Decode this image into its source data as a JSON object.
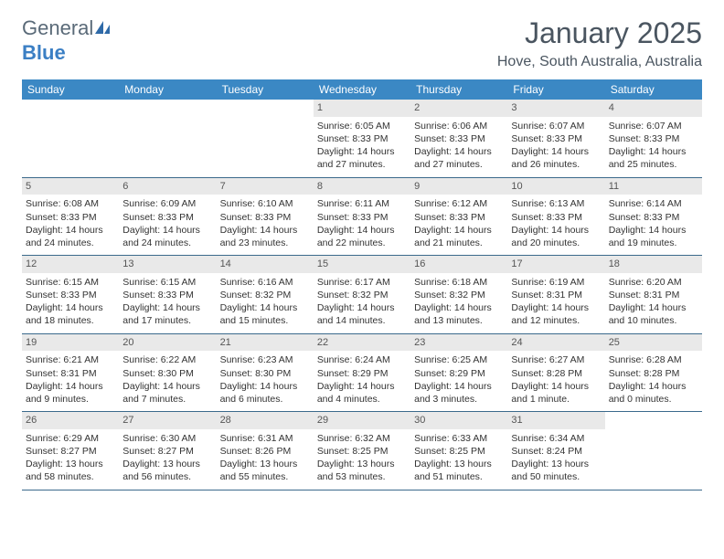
{
  "brand": {
    "general": "General",
    "blue": "Blue"
  },
  "header": {
    "title": "January 2025",
    "location": "Hove, South Australia, Australia"
  },
  "style": {
    "header_bg": "#3b88c4",
    "header_text": "#ffffff",
    "daynum_bg": "#e9e9e9",
    "week_border": "#3b6a8c",
    "title_color": "#4a5560"
  },
  "day_names": [
    "Sunday",
    "Monday",
    "Tuesday",
    "Wednesday",
    "Thursday",
    "Friday",
    "Saturday"
  ],
  "weeks": [
    [
      {
        "empty": true
      },
      {
        "empty": true
      },
      {
        "empty": true
      },
      {
        "day": "1",
        "sunrise": "Sunrise: 6:05 AM",
        "sunset": "Sunset: 8:33 PM",
        "daylight1": "Daylight: 14 hours",
        "daylight2": "and 27 minutes."
      },
      {
        "day": "2",
        "sunrise": "Sunrise: 6:06 AM",
        "sunset": "Sunset: 8:33 PM",
        "daylight1": "Daylight: 14 hours",
        "daylight2": "and 27 minutes."
      },
      {
        "day": "3",
        "sunrise": "Sunrise: 6:07 AM",
        "sunset": "Sunset: 8:33 PM",
        "daylight1": "Daylight: 14 hours",
        "daylight2": "and 26 minutes."
      },
      {
        "day": "4",
        "sunrise": "Sunrise: 6:07 AM",
        "sunset": "Sunset: 8:33 PM",
        "daylight1": "Daylight: 14 hours",
        "daylight2": "and 25 minutes."
      }
    ],
    [
      {
        "day": "5",
        "sunrise": "Sunrise: 6:08 AM",
        "sunset": "Sunset: 8:33 PM",
        "daylight1": "Daylight: 14 hours",
        "daylight2": "and 24 minutes."
      },
      {
        "day": "6",
        "sunrise": "Sunrise: 6:09 AM",
        "sunset": "Sunset: 8:33 PM",
        "daylight1": "Daylight: 14 hours",
        "daylight2": "and 24 minutes."
      },
      {
        "day": "7",
        "sunrise": "Sunrise: 6:10 AM",
        "sunset": "Sunset: 8:33 PM",
        "daylight1": "Daylight: 14 hours",
        "daylight2": "and 23 minutes."
      },
      {
        "day": "8",
        "sunrise": "Sunrise: 6:11 AM",
        "sunset": "Sunset: 8:33 PM",
        "daylight1": "Daylight: 14 hours",
        "daylight2": "and 22 minutes."
      },
      {
        "day": "9",
        "sunrise": "Sunrise: 6:12 AM",
        "sunset": "Sunset: 8:33 PM",
        "daylight1": "Daylight: 14 hours",
        "daylight2": "and 21 minutes."
      },
      {
        "day": "10",
        "sunrise": "Sunrise: 6:13 AM",
        "sunset": "Sunset: 8:33 PM",
        "daylight1": "Daylight: 14 hours",
        "daylight2": "and 20 minutes."
      },
      {
        "day": "11",
        "sunrise": "Sunrise: 6:14 AM",
        "sunset": "Sunset: 8:33 PM",
        "daylight1": "Daylight: 14 hours",
        "daylight2": "and 19 minutes."
      }
    ],
    [
      {
        "day": "12",
        "sunrise": "Sunrise: 6:15 AM",
        "sunset": "Sunset: 8:33 PM",
        "daylight1": "Daylight: 14 hours",
        "daylight2": "and 18 minutes."
      },
      {
        "day": "13",
        "sunrise": "Sunrise: 6:15 AM",
        "sunset": "Sunset: 8:33 PM",
        "daylight1": "Daylight: 14 hours",
        "daylight2": "and 17 minutes."
      },
      {
        "day": "14",
        "sunrise": "Sunrise: 6:16 AM",
        "sunset": "Sunset: 8:32 PM",
        "daylight1": "Daylight: 14 hours",
        "daylight2": "and 15 minutes."
      },
      {
        "day": "15",
        "sunrise": "Sunrise: 6:17 AM",
        "sunset": "Sunset: 8:32 PM",
        "daylight1": "Daylight: 14 hours",
        "daylight2": "and 14 minutes."
      },
      {
        "day": "16",
        "sunrise": "Sunrise: 6:18 AM",
        "sunset": "Sunset: 8:32 PM",
        "daylight1": "Daylight: 14 hours",
        "daylight2": "and 13 minutes."
      },
      {
        "day": "17",
        "sunrise": "Sunrise: 6:19 AM",
        "sunset": "Sunset: 8:31 PM",
        "daylight1": "Daylight: 14 hours",
        "daylight2": "and 12 minutes."
      },
      {
        "day": "18",
        "sunrise": "Sunrise: 6:20 AM",
        "sunset": "Sunset: 8:31 PM",
        "daylight1": "Daylight: 14 hours",
        "daylight2": "and 10 minutes."
      }
    ],
    [
      {
        "day": "19",
        "sunrise": "Sunrise: 6:21 AM",
        "sunset": "Sunset: 8:31 PM",
        "daylight1": "Daylight: 14 hours",
        "daylight2": "and 9 minutes."
      },
      {
        "day": "20",
        "sunrise": "Sunrise: 6:22 AM",
        "sunset": "Sunset: 8:30 PM",
        "daylight1": "Daylight: 14 hours",
        "daylight2": "and 7 minutes."
      },
      {
        "day": "21",
        "sunrise": "Sunrise: 6:23 AM",
        "sunset": "Sunset: 8:30 PM",
        "daylight1": "Daylight: 14 hours",
        "daylight2": "and 6 minutes."
      },
      {
        "day": "22",
        "sunrise": "Sunrise: 6:24 AM",
        "sunset": "Sunset: 8:29 PM",
        "daylight1": "Daylight: 14 hours",
        "daylight2": "and 4 minutes."
      },
      {
        "day": "23",
        "sunrise": "Sunrise: 6:25 AM",
        "sunset": "Sunset: 8:29 PM",
        "daylight1": "Daylight: 14 hours",
        "daylight2": "and 3 minutes."
      },
      {
        "day": "24",
        "sunrise": "Sunrise: 6:27 AM",
        "sunset": "Sunset: 8:28 PM",
        "daylight1": "Daylight: 14 hours",
        "daylight2": "and 1 minute."
      },
      {
        "day": "25",
        "sunrise": "Sunrise: 6:28 AM",
        "sunset": "Sunset: 8:28 PM",
        "daylight1": "Daylight: 14 hours",
        "daylight2": "and 0 minutes."
      }
    ],
    [
      {
        "day": "26",
        "sunrise": "Sunrise: 6:29 AM",
        "sunset": "Sunset: 8:27 PM",
        "daylight1": "Daylight: 13 hours",
        "daylight2": "and 58 minutes."
      },
      {
        "day": "27",
        "sunrise": "Sunrise: 6:30 AM",
        "sunset": "Sunset: 8:27 PM",
        "daylight1": "Daylight: 13 hours",
        "daylight2": "and 56 minutes."
      },
      {
        "day": "28",
        "sunrise": "Sunrise: 6:31 AM",
        "sunset": "Sunset: 8:26 PM",
        "daylight1": "Daylight: 13 hours",
        "daylight2": "and 55 minutes."
      },
      {
        "day": "29",
        "sunrise": "Sunrise: 6:32 AM",
        "sunset": "Sunset: 8:25 PM",
        "daylight1": "Daylight: 13 hours",
        "daylight2": "and 53 minutes."
      },
      {
        "day": "30",
        "sunrise": "Sunrise: 6:33 AM",
        "sunset": "Sunset: 8:25 PM",
        "daylight1": "Daylight: 13 hours",
        "daylight2": "and 51 minutes."
      },
      {
        "day": "31",
        "sunrise": "Sunrise: 6:34 AM",
        "sunset": "Sunset: 8:24 PM",
        "daylight1": "Daylight: 13 hours",
        "daylight2": "and 50 minutes."
      },
      {
        "empty": true
      }
    ]
  ]
}
